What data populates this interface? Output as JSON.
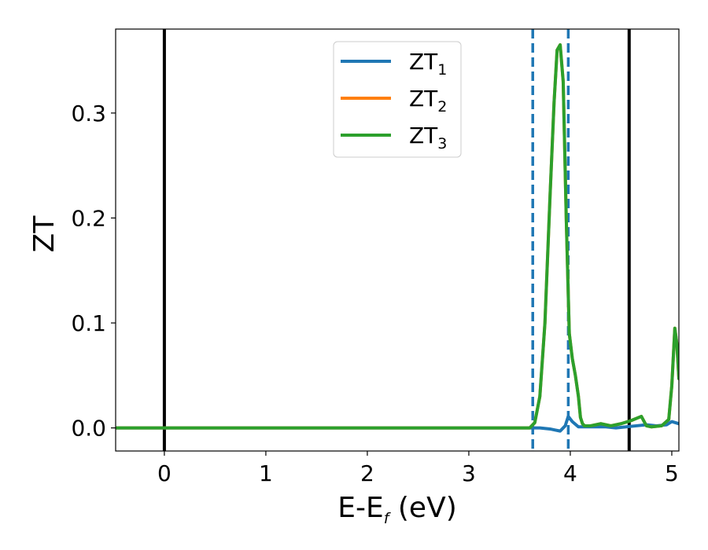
{
  "chart_data": {
    "type": "line",
    "title": "",
    "xlabel": {
      "main": "E-E",
      "sub": "f",
      "suffix": " (eV)"
    },
    "ylabel": "ZT",
    "xlim": [
      -0.48,
      5.07
    ],
    "ylim": [
      -0.022,
      0.38
    ],
    "xticks": [
      0,
      1,
      2,
      3,
      4,
      5
    ],
    "yticks": [
      0.0,
      0.1,
      0.2,
      0.3
    ],
    "xtick_labels": [
      "0",
      "1",
      "2",
      "3",
      "4",
      "5"
    ],
    "ytick_labels": [
      "0.0",
      "0.1",
      "0.2",
      "0.3"
    ],
    "grid": false,
    "legend_position": "top-center",
    "colors": {
      "ZT1": "#1f77b4",
      "ZT2": "#ff7f0e",
      "ZT3": "#2ca02c",
      "vline": "#000000",
      "dashed": "#1f77b4"
    },
    "vertical_lines": [
      {
        "x": 0.0,
        "style": "solid",
        "color": "#000000"
      },
      {
        "x": 4.58,
        "style": "solid",
        "color": "#000000"
      },
      {
        "x": 3.63,
        "style": "dashed",
        "color": "#1f77b4"
      },
      {
        "x": 3.98,
        "style": "dashed",
        "color": "#1f77b4"
      }
    ],
    "series": [
      {
        "name": "ZT",
        "sub": "1",
        "color": "#1f77b4",
        "x": [
          -0.48,
          3.6,
          3.7,
          3.8,
          3.85,
          3.9,
          3.95,
          3.98,
          4.02,
          4.08,
          4.15,
          4.25,
          4.35,
          4.45,
          4.55,
          4.65,
          4.75,
          4.85,
          4.95,
          5.0,
          5.07
        ],
        "y": [
          0.0,
          0.0,
          0.0,
          -0.001,
          -0.002,
          -0.003,
          0.002,
          0.011,
          0.006,
          0.001,
          0.001,
          0.001,
          0.001,
          0.0,
          0.001,
          0.002,
          0.003,
          0.002,
          0.003,
          0.006,
          0.004
        ]
      },
      {
        "name": "ZT",
        "sub": "2",
        "color": "#ff7f0e",
        "x": [
          -0.48,
          3.6,
          3.65,
          3.7,
          3.75,
          3.8,
          3.84,
          3.87,
          3.9,
          3.93,
          3.96,
          3.99,
          4.02,
          4.05,
          4.08,
          4.1,
          4.12,
          4.14,
          4.2,
          4.3,
          4.4,
          4.5,
          4.6,
          4.7,
          4.75,
          4.8,
          4.9,
          4.97,
          5.0,
          5.03,
          5.05,
          5.07
        ],
        "y": [
          0.0,
          0.0,
          0.005,
          0.03,
          0.1,
          0.22,
          0.31,
          0.36,
          0.365,
          0.33,
          0.2,
          0.09,
          0.066,
          0.05,
          0.03,
          0.01,
          0.004,
          0.002,
          0.002,
          0.004,
          0.002,
          0.004,
          0.007,
          0.011,
          0.002,
          0.001,
          0.002,
          0.008,
          0.04,
          0.095,
          0.08,
          0.047
        ]
      },
      {
        "name": "ZT",
        "sub": "3",
        "color": "#2ca02c",
        "x": [
          -0.48,
          3.6,
          3.65,
          3.7,
          3.75,
          3.8,
          3.84,
          3.87,
          3.9,
          3.93,
          3.96,
          3.99,
          4.02,
          4.05,
          4.08,
          4.1,
          4.12,
          4.14,
          4.2,
          4.3,
          4.4,
          4.5,
          4.6,
          4.7,
          4.75,
          4.8,
          4.9,
          4.97,
          5.0,
          5.03,
          5.05,
          5.07
        ],
        "y": [
          0.0,
          0.0,
          0.005,
          0.03,
          0.1,
          0.22,
          0.31,
          0.36,
          0.365,
          0.33,
          0.2,
          0.09,
          0.066,
          0.05,
          0.03,
          0.01,
          0.004,
          0.002,
          0.002,
          0.004,
          0.002,
          0.004,
          0.007,
          0.011,
          0.002,
          0.001,
          0.002,
          0.008,
          0.04,
          0.095,
          0.08,
          0.047
        ]
      }
    ]
  }
}
